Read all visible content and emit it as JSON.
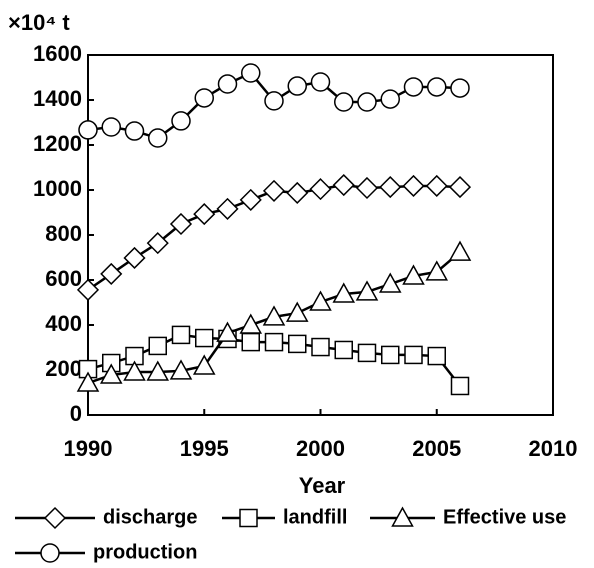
{
  "chart_data": {
    "type": "line",
    "y_unit": "×10⁴ t",
    "x_label": "Year",
    "x": [
      1990,
      1991,
      1992,
      1993,
      1994,
      1995,
      1996,
      1997,
      1998,
      1999,
      2000,
      2001,
      2002,
      2003,
      2004,
      2005,
      2006
    ],
    "series": [
      {
        "name": "discharge",
        "color": "#000000",
        "marker": "diamond",
        "values": [
          556,
          627,
          698,
          764,
          849,
          893,
          916,
          956,
          996,
          987,
          1004,
          1022,
          1009,
          1013,
          1018,
          1018,
          1013
        ]
      },
      {
        "name": "landfill",
        "color": "#000000",
        "marker": "square",
        "values": [
          204,
          231,
          262,
          307,
          356,
          342,
          338,
          324,
          324,
          316,
          302,
          289,
          276,
          267,
          267,
          262,
          129
        ]
      },
      {
        "name": "Effective use",
        "color": "#000000",
        "marker": "triangle",
        "values": [
          142,
          178,
          191,
          191,
          196,
          218,
          364,
          400,
          436,
          453,
          502,
          538,
          547,
          582,
          618,
          636,
          724
        ]
      },
      {
        "name": "production",
        "color": "#000000",
        "marker": "circle",
        "values": [
          1267,
          1280,
          1262,
          1231,
          1307,
          1409,
          1471,
          1520,
          1396,
          1462,
          1480,
          1391,
          1391,
          1404,
          1458,
          1458,
          1453
        ]
      }
    ],
    "xlim": [
      1990,
      2010
    ],
    "xticks": [
      1990,
      1995,
      2000,
      2005,
      2010
    ],
    "ylim": [
      0,
      1600
    ],
    "yticks": [
      0,
      200,
      400,
      600,
      800,
      1000,
      1200,
      1400,
      1600
    ],
    "grid": false,
    "legend": "bottom"
  }
}
